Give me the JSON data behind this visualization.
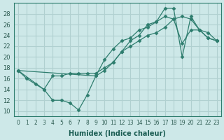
{
  "xlabel": "Humidex (Indice chaleur)",
  "bg_color": "#cde8e8",
  "grid_color": "#b0d0d0",
  "line_color": "#2e7d6e",
  "xlim": [
    -0.5,
    23.5
  ],
  "ylim": [
    9,
    30
  ],
  "xticks": [
    0,
    1,
    2,
    3,
    4,
    5,
    6,
    7,
    8,
    9,
    10,
    11,
    12,
    13,
    14,
    15,
    16,
    17,
    18,
    19,
    20,
    21,
    22,
    23
  ],
  "yticks": [
    10,
    12,
    14,
    16,
    18,
    20,
    22,
    24,
    26,
    28
  ],
  "line1_x": [
    0,
    1,
    2,
    3,
    4,
    5,
    6,
    7,
    8,
    9,
    10,
    11,
    12,
    13,
    14,
    15,
    16,
    17,
    18,
    19,
    20,
    21,
    22,
    23
  ],
  "line1_y": [
    17.5,
    16,
    15,
    14,
    12,
    12,
    11.5,
    10.2,
    13,
    16.5,
    19.5,
    21.5,
    23,
    23.5,
    25,
    25.5,
    26.5,
    27.5,
    27,
    22.5,
    25,
    25,
    23.5,
    23
  ],
  "line2_x": [
    0,
    3,
    4,
    5,
    6,
    7,
    8,
    9,
    10,
    11,
    12,
    13,
    14,
    15,
    16,
    17,
    18,
    19,
    20,
    21,
    22,
    23
  ],
  "line2_y": [
    17.5,
    14,
    16.5,
    16.5,
    17,
    17,
    17,
    17,
    18,
    19,
    21,
    22,
    23,
    24,
    24.5,
    25.5,
    27,
    27.5,
    27,
    25,
    23.5,
    23
  ],
  "line3_x": [
    0,
    9,
    10,
    11,
    12,
    13,
    14,
    15,
    16,
    17,
    18,
    19,
    20,
    21,
    22,
    23
  ],
  "line3_y": [
    17.5,
    16.5,
    17.5,
    19,
    21,
    23,
    24,
    26,
    26.5,
    29,
    29,
    20,
    27.5,
    25,
    24.5,
    23
  ]
}
